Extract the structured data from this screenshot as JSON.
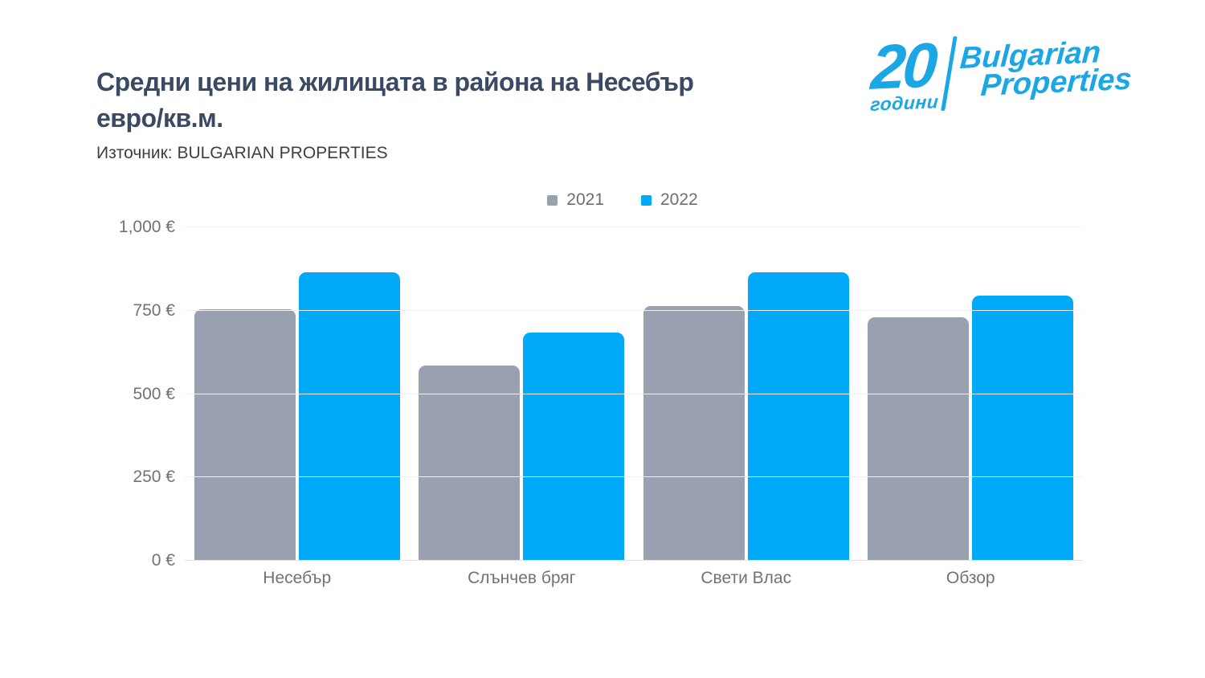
{
  "header": {
    "title_line1": "Средни цени на жилищата в района на Несебър",
    "title_line2": "евро/кв.м.",
    "title_full": "Средни цени на жилищата в района на Несебър евро/кв.м.",
    "source": "Източник: BULGARIAN PROPERTIES",
    "title_color": "#3b4a63"
  },
  "logo": {
    "years_number": "20",
    "years_label": "години",
    "brand_line1": "Bulgarian",
    "brand_line2": "Properties",
    "color": "#1ba6e6"
  },
  "chart_data": {
    "type": "bar",
    "title": "Средни цени на жилищата в района на Несебър евро/кв.м.",
    "subtitle": "Източник: BULGARIAN PROPERTIES",
    "categories": [
      "Несебър",
      "Слънчев бряг",
      "Свети Влас",
      "Обзор"
    ],
    "series": [
      {
        "name": "2021",
        "color": "#99a1b0",
        "values": [
          755,
          585,
          765,
          730
        ]
      },
      {
        "name": "2022",
        "color": "#00aaf8",
        "values": [
          865,
          685,
          865,
          795
        ]
      }
    ],
    "xlabel": "",
    "ylabel": "",
    "ylim": [
      0,
      1000
    ],
    "ytick_step": 250,
    "ytick_labels": [
      "0 €",
      "250 €",
      "500 €",
      "750 €",
      "1,000 €"
    ],
    "currency": "EUR",
    "grid": true,
    "legend_position": "top-center",
    "colors": {
      "axis_label": "#757170",
      "legend_label": "#6e6e6e",
      "gridline": "#f1f1f1",
      "baseline": "#e2e2e2"
    }
  }
}
